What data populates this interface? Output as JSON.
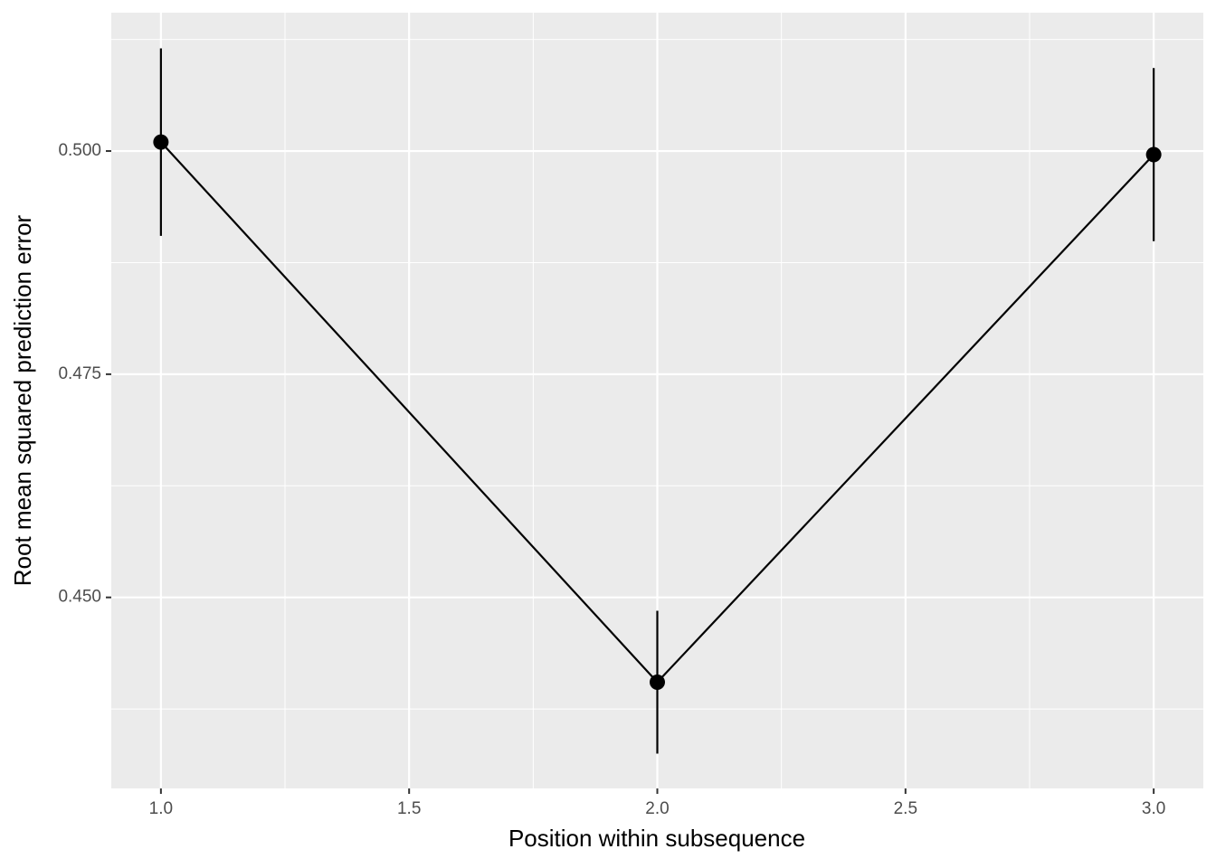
{
  "chart_data": {
    "type": "line",
    "x_label": "Position within subsequence",
    "y_label": "Root mean squared prediction error",
    "x": [
      1,
      2,
      3
    ],
    "values": [
      0.501,
      0.4405,
      0.4996
    ],
    "errors": [
      0.0105,
      0.008,
      0.0097
    ],
    "color": "#000000",
    "xlim": [
      0.9,
      3.1
    ],
    "xticks": [
      {
        "value": 1,
        "label": "1.0"
      },
      {
        "value": 1.5,
        "label": "1.5"
      },
      {
        "value": 2,
        "label": "2.0"
      },
      {
        "value": 2.5,
        "label": "2.5"
      },
      {
        "value": 3,
        "label": "3.0"
      }
    ],
    "ylim": [
      0.4286,
      0.5155
    ],
    "yticks": [
      {
        "value": 0.45,
        "label": "0.450"
      },
      {
        "value": 0.475,
        "label": "0.475"
      },
      {
        "value": 0.5,
        "label": "0.500"
      }
    ],
    "grid": true
  }
}
